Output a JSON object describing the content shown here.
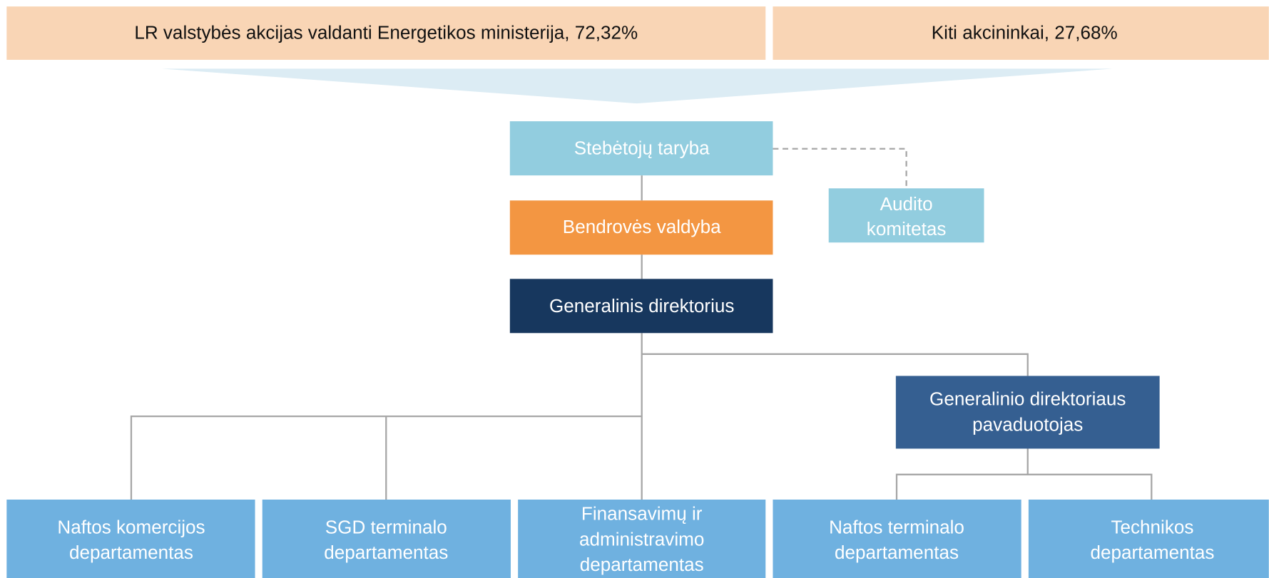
{
  "shareholders": [
    {
      "label": "LR valstybės akcijas valdanti Energetikos ministerija, 72,32%"
    },
    {
      "label": "Kiti akcininkai, 27,68%"
    }
  ],
  "nodes": [
    {
      "lines": [
        "Stebėtojų taryba"
      ]
    },
    {
      "lines": [
        "Audito",
        "komitetas"
      ]
    },
    {
      "lines": [
        "Bendrovės valdyba"
      ]
    },
    {
      "lines": [
        "Generalinis direktorius"
      ]
    },
    {
      "lines": [
        "Generalinio direktoriaus",
        "pavaduotojas"
      ]
    },
    {
      "lines": [
        "Naftos komercijos",
        "departamentas"
      ]
    },
    {
      "lines": [
        "SGD terminalo",
        "departamentas"
      ]
    },
    {
      "lines": [
        "Finansavimų ir",
        "administravimo",
        "departamentas"
      ]
    },
    {
      "lines": [
        "Naftos terminalo",
        "departamentas"
      ]
    },
    {
      "lines": [
        "Technikos",
        "departamentas"
      ]
    }
  ]
}
